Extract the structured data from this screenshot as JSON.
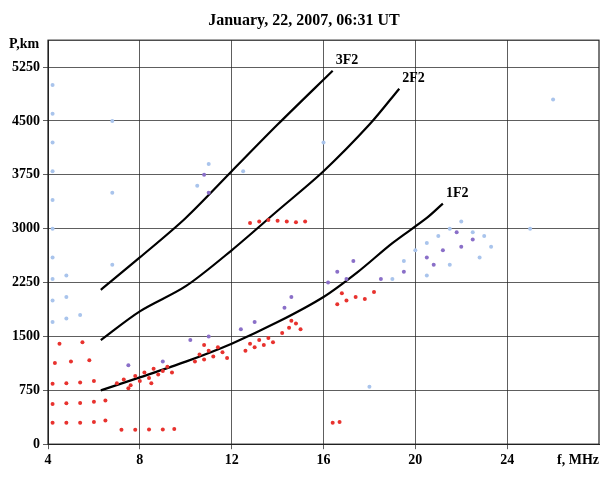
{
  "chart_data": {
    "type": "scatter",
    "title": "January, 22, 2007, 06:31 UT",
    "x_label": "f, MHz",
    "y_label": "P,km",
    "xlim": [
      4,
      28
    ],
    "xticks": [
      4,
      8,
      12,
      16,
      20,
      24
    ],
    "ylim": [
      0,
      5625
    ],
    "yticks": [
      0,
      750,
      1500,
      2250,
      3000,
      3750,
      4500,
      5250
    ],
    "grid": true,
    "series": [
      {
        "color": "#a9c4ec",
        "marker": "circle",
        "values": [
          [
            19,
            2300
          ],
          [
            19.5,
            2550
          ],
          [
            20,
            2700
          ],
          [
            20.5,
            2800
          ],
          [
            21,
            2900
          ],
          [
            21.5,
            3000
          ],
          [
            22,
            3100
          ],
          [
            22.5,
            2950
          ],
          [
            23,
            2900
          ],
          [
            23.3,
            2750
          ],
          [
            22.8,
            2600
          ],
          [
            21.5,
            2500
          ],
          [
            20.5,
            2350
          ],
          [
            12.5,
            3800
          ],
          [
            11,
            3900
          ],
          [
            10.5,
            3600
          ],
          [
            6.8,
            2500
          ],
          [
            6.8,
            3500
          ],
          [
            6.8,
            4500
          ],
          [
            4.2,
            1700
          ],
          [
            4.8,
            1750
          ],
          [
            5.4,
            1800
          ],
          [
            4.2,
            2000
          ],
          [
            4.8,
            2050
          ],
          [
            4.2,
            2300
          ],
          [
            4.8,
            2350
          ],
          [
            4.2,
            2600
          ],
          [
            4.2,
            3000
          ],
          [
            4.2,
            3400
          ],
          [
            4.2,
            3800
          ],
          [
            4.2,
            4200
          ],
          [
            4.2,
            4600
          ],
          [
            4.2,
            5000
          ],
          [
            16,
            4200
          ],
          [
            25,
            3000
          ],
          [
            26,
            4800
          ],
          [
            18,
            800
          ]
        ]
      },
      {
        "color": "#8a6fc8",
        "marker": "circle",
        "values": [
          [
            7.5,
            1100
          ],
          [
            9,
            1150
          ],
          [
            10.2,
            1450
          ],
          [
            11,
            1500
          ],
          [
            12.4,
            1600
          ],
          [
            13,
            1700
          ],
          [
            14.3,
            1900
          ],
          [
            14.6,
            2050
          ],
          [
            16.2,
            2250
          ],
          [
            16.6,
            2400
          ],
          [
            17,
            2300
          ],
          [
            17.3,
            2550
          ],
          [
            19.5,
            2400
          ],
          [
            20.5,
            2600
          ],
          [
            21.2,
            2700
          ],
          [
            22,
            2750
          ],
          [
            22.5,
            2850
          ],
          [
            21.8,
            2950
          ],
          [
            20.8,
            2500
          ],
          [
            18.5,
            2300
          ],
          [
            10.8,
            3750
          ],
          [
            11,
            3500
          ]
        ]
      },
      {
        "color": "#e8322e",
        "marker": "circle",
        "values": [
          [
            4.2,
            300
          ],
          [
            4.8,
            300
          ],
          [
            5.4,
            300
          ],
          [
            6,
            310
          ],
          [
            6.5,
            330
          ],
          [
            4.2,
            560
          ],
          [
            4.8,
            570
          ],
          [
            5.4,
            575
          ],
          [
            6,
            590
          ],
          [
            6.5,
            610
          ],
          [
            4.2,
            840
          ],
          [
            4.8,
            850
          ],
          [
            5.4,
            860
          ],
          [
            6,
            880
          ],
          [
            4.3,
            1130
          ],
          [
            5,
            1150
          ],
          [
            5.8,
            1170
          ],
          [
            4.5,
            1400
          ],
          [
            5.5,
            1420
          ],
          [
            7,
            850
          ],
          [
            7.3,
            900
          ],
          [
            7.6,
            820
          ],
          [
            7.8,
            950
          ],
          [
            8,
            880
          ],
          [
            8.2,
            1000
          ],
          [
            8.4,
            920
          ],
          [
            8.6,
            1050
          ],
          [
            8.8,
            970
          ],
          [
            9,
            1020
          ],
          [
            9.2,
            1080
          ],
          [
            9.4,
            1000
          ],
          [
            7.5,
            780
          ],
          [
            8.5,
            850
          ],
          [
            7.2,
            200
          ],
          [
            7.8,
            200
          ],
          [
            8.4,
            205
          ],
          [
            9,
            205
          ],
          [
            9.5,
            210
          ],
          [
            10.4,
            1150
          ],
          [
            10.6,
            1250
          ],
          [
            10.8,
            1180
          ],
          [
            11,
            1300
          ],
          [
            11.2,
            1220
          ],
          [
            11.4,
            1350
          ],
          [
            11.6,
            1280
          ],
          [
            11.8,
            1200
          ],
          [
            10.8,
            1380
          ],
          [
            12.6,
            1300
          ],
          [
            12.8,
            1400
          ],
          [
            13,
            1350
          ],
          [
            13.2,
            1450
          ],
          [
            13.4,
            1380
          ],
          [
            13.6,
            1480
          ],
          [
            13.8,
            1420
          ],
          [
            12.8,
            3080
          ],
          [
            13.2,
            3100
          ],
          [
            13.6,
            3120
          ],
          [
            14,
            3110
          ],
          [
            14.4,
            3100
          ],
          [
            14.8,
            3090
          ],
          [
            15.2,
            3100
          ],
          [
            14.2,
            1550
          ],
          [
            14.5,
            1620
          ],
          [
            14.8,
            1680
          ],
          [
            15,
            1600
          ],
          [
            14.6,
            1720
          ],
          [
            16.6,
            1950
          ],
          [
            17,
            2000
          ],
          [
            17.4,
            2050
          ],
          [
            17.8,
            2020
          ],
          [
            16.8,
            2100
          ],
          [
            18.2,
            2120
          ],
          [
            16.4,
            300
          ],
          [
            16.7,
            310
          ]
        ]
      },
      {
        "name": "1F2",
        "type": "line",
        "color": "#000000",
        "marker": "none",
        "values": [
          [
            6.3,
            750
          ],
          [
            8,
            930
          ],
          [
            10,
            1150
          ],
          [
            12,
            1400
          ],
          [
            14,
            1700
          ],
          [
            16,
            2050
          ],
          [
            17.5,
            2400
          ],
          [
            19,
            2800
          ],
          [
            20.5,
            3150
          ],
          [
            21.2,
            3350
          ]
        ]
      },
      {
        "name": "2F2",
        "type": "line",
        "color": "#000000",
        "marker": "none",
        "values": [
          [
            6.3,
            1450
          ],
          [
            8,
            1850
          ],
          [
            10,
            2200
          ],
          [
            12,
            2700
          ],
          [
            14,
            3250
          ],
          [
            16,
            3800
          ],
          [
            18,
            4450
          ],
          [
            19.3,
            4950
          ]
        ]
      },
      {
        "name": "3F2",
        "type": "line",
        "color": "#000000",
        "marker": "none",
        "values": [
          [
            6.3,
            2150
          ],
          [
            8,
            2600
          ],
          [
            10,
            3150
          ],
          [
            12,
            3800
          ],
          [
            14,
            4450
          ],
          [
            16.4,
            5200
          ]
        ]
      }
    ]
  }
}
